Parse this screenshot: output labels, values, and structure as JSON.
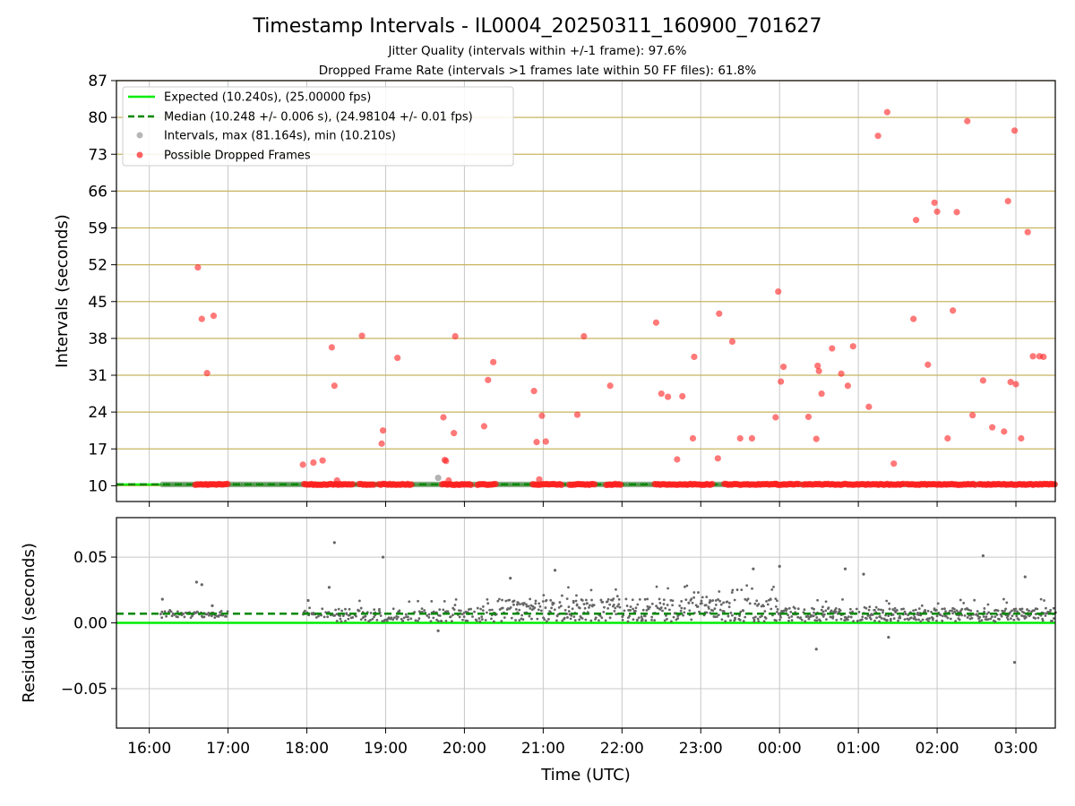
{
  "figure": {
    "title": "Timestamp Intervals - IL0004_20250311_160900_701627",
    "subtitle1": "Jitter Quality (intervals within +/-1 frame): 97.6%",
    "subtitle2": "Dropped Frame Rate (intervals >1 frames late within 50 FF files): 61.8%"
  },
  "colors": {
    "expected": "#00ee00",
    "median": "#008800",
    "intervals": "#999999",
    "dropped": "#ff2020",
    "residual_points": "#666666",
    "hgrid_top": "#c8b460",
    "grid": "#c8c8c8"
  },
  "chart_data": [
    {
      "type": "scatter",
      "ylabel": "Intervals (seconds)",
      "ylim": [
        7,
        87
      ],
      "yticks": [
        10,
        17,
        24,
        31,
        38,
        45,
        52,
        59,
        66,
        73,
        80,
        87
      ],
      "xlim": [
        "15:35",
        "03:30"
      ],
      "legend": {
        "placement": "top-left",
        "entries": [
          "Expected (10.240s), (25.00000 fps)",
          "Median (10.248 +/- 0.006 s), (24.98104 +/- 0.01 fps)",
          "Intervals, max (81.164s), min (10.210s)",
          "Possible Dropped Frames"
        ]
      },
      "expected": 10.24,
      "median": 10.248,
      "series": [
        {
          "name": "Intervals, max (81.164s), min (10.210s)",
          "baseline_value": 10.24,
          "x": [
            "16:10",
            "19:40"
          ],
          "values": [
            10.25,
            11.5
          ]
        },
        {
          "name": "Possible Dropped Frames",
          "baseline_value": 10.25,
          "baseline_ranges": [
            [
              "16:35",
              "17:00"
            ],
            [
              "17:58",
              "18:35"
            ],
            [
              "18:40",
              "18:52"
            ],
            [
              "18:55",
              "19:20"
            ],
            [
              "19:43",
              "20:05"
            ],
            [
              "20:10",
              "20:25"
            ],
            [
              "20:52",
              "21:15"
            ],
            [
              "21:20",
              "21:40"
            ],
            [
              "21:48",
              "22:00"
            ],
            [
              "22:25",
              "23:10"
            ],
            [
              "23:18",
              "23:58"
            ],
            [
              "23:57",
              "00:15"
            ],
            [
              "00:18",
              "01:35"
            ],
            [
              "01:37",
              "02:30"
            ],
            [
              "02:32",
              "03:30"
            ]
          ],
          "x": [
            "16:37",
            "16:40",
            "16:44",
            "16:49",
            "17:57",
            "18:05",
            "18:12",
            "18:19",
            "18:21",
            "18:23",
            "18:42",
            "18:57",
            "18:58",
            "19:09",
            "19:44",
            "19:45",
            "19:46",
            "19:48",
            "19:52",
            "19:53",
            "20:15",
            "20:18",
            "20:22",
            "20:53",
            "20:55",
            "20:57",
            "20:59",
            "21:02",
            "21:26",
            "21:31",
            "21:51",
            "22:26",
            "22:30",
            "22:35",
            "22:42",
            "22:46",
            "22:54",
            "22:55",
            "23:13",
            "23:14",
            "23:24",
            "23:30",
            "23:39",
            "23:57",
            "23:59",
            "00:01",
            "00:03",
            "00:22",
            "00:28",
            "00:29",
            "00:30",
            "00:32",
            "00:40",
            "00:47",
            "00:52",
            "00:56",
            "01:08",
            "01:15",
            "01:22",
            "01:27",
            "01:42",
            "01:44",
            "01:53",
            "01:58",
            "02:00",
            "02:08",
            "02:12",
            "02:15",
            "02:23",
            "02:27",
            "02:35",
            "02:42",
            "02:51",
            "02:54",
            "02:56",
            "02:59",
            "03:00",
            "03:04",
            "03:09",
            "03:13",
            "03:18",
            "03:21"
          ],
          "values": [
            51.5,
            41.7,
            31.4,
            42.3,
            14.0,
            14.4,
            14.8,
            36.3,
            29.0,
            11.0,
            38.5,
            18.0,
            20.5,
            34.3,
            23.0,
            14.9,
            14.7,
            11.0,
            20.0,
            38.4,
            21.3,
            30.1,
            33.5,
            28.0,
            18.3,
            11.2,
            23.3,
            18.4,
            23.5,
            38.4,
            29.0,
            41.0,
            27.5,
            26.9,
            15.0,
            27.0,
            19.0,
            34.5,
            15.2,
            42.7,
            37.4,
            19.0,
            19.0,
            23.0,
            46.9,
            29.8,
            32.6,
            23.1,
            18.9,
            32.8,
            31.8,
            27.5,
            36.1,
            31.3,
            29.0,
            36.5,
            25.0,
            76.5,
            81.0,
            14.2,
            41.7,
            60.5,
            33.0,
            63.8,
            62.1,
            19.0,
            43.3,
            62.0,
            79.3,
            23.4,
            30.0,
            21.1,
            20.3,
            64.1,
            29.7,
            77.5,
            29.3,
            19.0,
            58.2,
            34.6,
            34.6,
            34.5
          ]
        }
      ]
    },
    {
      "type": "scatter",
      "xlabel": "Time (UTC)",
      "ylabel": "Residuals (seconds)",
      "ylim": [
        -0.08,
        0.08
      ],
      "ytick_values": [
        -0.05,
        0.0,
        0.05
      ],
      "ytick_labels": [
        "−0.05",
        "0.00",
        "0.05"
      ],
      "xticks": [
        "16:00",
        "17:00",
        "18:00",
        "19:00",
        "20:00",
        "21:00",
        "22:00",
        "23:00",
        "00:00",
        "01:00",
        "02:00",
        "03:00"
      ],
      "expected_residual": 0.0,
      "median_residual": 0.007,
      "series": [
        {
          "name": "Residuals",
          "segments": [
            {
              "from": "16:08",
              "to": "17:00",
              "min": 0.004,
              "max": 0.012
            },
            {
              "from": "17:57",
              "to": "18:20",
              "min": 0.004,
              "max": 0.012
            },
            {
              "from": "18:20",
              "to": "20:20",
              "min": 0.001,
              "max": 0.018
            },
            {
              "from": "20:20",
              "to": "23:58",
              "min": 0.001,
              "max": 0.03
            },
            {
              "from": "23:58",
              "to": "03:30",
              "min": 0.001,
              "max": 0.018
            }
          ],
          "outliers": [
            {
              "x": "16:10",
              "y": 0.018
            },
            {
              "x": "16:36",
              "y": 0.031
            },
            {
              "x": "16:40",
              "y": 0.029
            },
            {
              "x": "16:48",
              "y": 0.013
            },
            {
              "x": "18:01",
              "y": 0.017
            },
            {
              "x": "18:17",
              "y": 0.027
            },
            {
              "x": "18:21",
              "y": 0.061
            },
            {
              "x": "18:58",
              "y": 0.05
            },
            {
              "x": "19:40",
              "y": -0.006
            },
            {
              "x": "20:35",
              "y": 0.034
            },
            {
              "x": "21:09",
              "y": 0.04
            },
            {
              "x": "23:40",
              "y": 0.041
            },
            {
              "x": "00:00",
              "y": 0.043
            },
            {
              "x": "00:28",
              "y": -0.02
            },
            {
              "x": "00:50",
              "y": 0.041
            },
            {
              "x": "01:04",
              "y": 0.037
            },
            {
              "x": "01:23",
              "y": -0.011
            },
            {
              "x": "02:35",
              "y": 0.051
            },
            {
              "x": "02:59",
              "y": -0.03
            },
            {
              "x": "03:07",
              "y": 0.035
            }
          ]
        }
      ]
    }
  ]
}
